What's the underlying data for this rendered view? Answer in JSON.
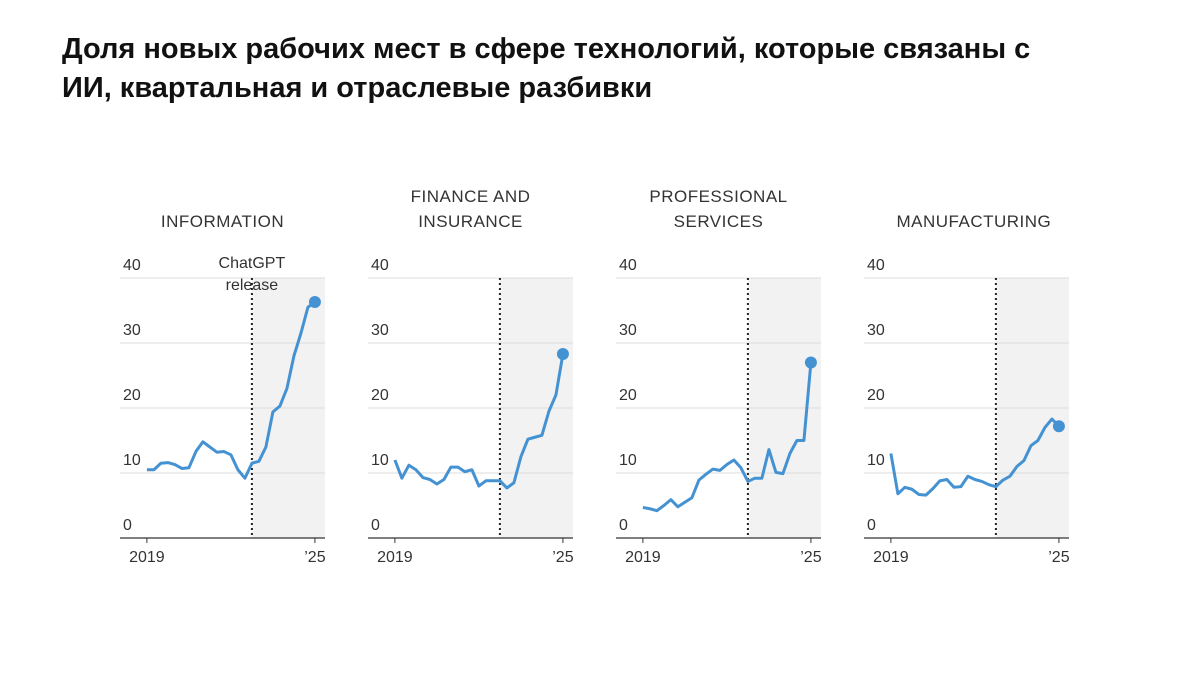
{
  "title": "Доля новых рабочих мест в сфере технологий, которые связаны с ИИ, квартальная и отраслевые разбивки",
  "chart_data": [
    {
      "type": "line",
      "title": "INFORMATION",
      "annotation": {
        "text": "ChatGPT release",
        "x": 2022.75
      },
      "release_x": 2022.75,
      "x": [
        2019,
        2019.25,
        2019.5,
        2019.75,
        2020,
        2020.25,
        2020.5,
        2020.75,
        2021,
        2021.25,
        2021.5,
        2021.75,
        2022,
        2022.25,
        2022.5,
        2022.75,
        2023,
        2023.25,
        2023.5,
        2023.75,
        2024,
        2024.25,
        2024.5,
        2024.75,
        2025
      ],
      "series": [
        {
          "color": "#4592d3",
          "values": [
            10.5,
            10.5,
            11.5,
            11.6,
            11.3,
            10.7,
            10.8,
            13.3,
            14.8,
            14,
            13.2,
            13.3,
            12.8,
            10.5,
            9.2,
            11.5,
            11.8,
            14,
            19.4,
            20.3,
            23,
            28,
            31.5,
            35.5,
            36.3
          ]
        }
      ],
      "xlim": [
        2018.04,
        2025.36
      ],
      "xticks": [
        2019,
        {
          "value": 2025,
          "label": "’25"
        }
      ],
      "ylim": [
        0,
        40
      ],
      "yticks": [
        0,
        10,
        20,
        30,
        40
      ],
      "grid": true
    },
    {
      "type": "line",
      "title": "FINANCE AND INSURANCE",
      "release_x": 2022.75,
      "x": [
        2019,
        2019.25,
        2019.5,
        2019.75,
        2020,
        2020.25,
        2020.5,
        2020.75,
        2021,
        2021.25,
        2021.5,
        2021.75,
        2022,
        2022.25,
        2022.5,
        2022.75,
        2023,
        2023.25,
        2023.5,
        2023.75,
        2024,
        2024.25,
        2024.5,
        2024.75,
        2025
      ],
      "series": [
        {
          "color": "#4592d3",
          "values": [
            12,
            9.2,
            11.2,
            10.5,
            9.3,
            9,
            8.3,
            9,
            10.9,
            10.9,
            10.2,
            10.5,
            8,
            8.8,
            8.8,
            8.8,
            7.7,
            8.5,
            12.5,
            15.2,
            15.5,
            15.8,
            19.5,
            22,
            28.3
          ]
        }
      ],
      "xlim": [
        2018.04,
        2025.36
      ],
      "xticks": [
        2019,
        {
          "value": 2025,
          "label": "’25"
        }
      ],
      "ylim": [
        0,
        40
      ],
      "yticks": [
        0,
        10,
        20,
        30,
        40
      ],
      "grid": true
    },
    {
      "type": "line",
      "title": "PROFESSIONAL SERVICES",
      "release_x": 2022.75,
      "x": [
        2019,
        2019.25,
        2019.5,
        2019.75,
        2020,
        2020.25,
        2020.5,
        2020.75,
        2021,
        2021.25,
        2021.5,
        2021.75,
        2022,
        2022.25,
        2022.5,
        2022.75,
        2023,
        2023.25,
        2023.5,
        2023.75,
        2024,
        2024.25,
        2024.5,
        2024.75,
        2025
      ],
      "series": [
        {
          "color": "#4592d3",
          "values": [
            4.7,
            4.5,
            4.2,
            5,
            5.9,
            4.8,
            5.5,
            6.2,
            8.9,
            9.8,
            10.6,
            10.4,
            11.3,
            12,
            10.8,
            8.7,
            9.2,
            9.2,
            13.6,
            10.1,
            9.9,
            13,
            15,
            15,
            27
          ]
        }
      ],
      "xlim": [
        2018.04,
        2025.36
      ],
      "xticks": [
        2019,
        {
          "value": 2025,
          "label": "’25"
        }
      ],
      "ylim": [
        0,
        40
      ],
      "yticks": [
        0,
        10,
        20,
        30,
        40
      ],
      "grid": true
    },
    {
      "type": "line",
      "title": "MANUFACTURING",
      "release_x": 2022.75,
      "x": [
        2019,
        2019.25,
        2019.5,
        2019.75,
        2020,
        2020.25,
        2020.5,
        2020.75,
        2021,
        2021.25,
        2021.5,
        2021.75,
        2022,
        2022.25,
        2022.5,
        2022.75,
        2023,
        2023.25,
        2023.5,
        2023.75,
        2024,
        2024.25,
        2024.5,
        2024.75,
        2025
      ],
      "series": [
        {
          "color": "#4592d3",
          "values": [
            13,
            6.8,
            7.8,
            7.5,
            6.7,
            6.6,
            7.6,
            8.8,
            9,
            7.8,
            7.9,
            9.5,
            9,
            8.7,
            8.2,
            7.9,
            8.9,
            9.5,
            11,
            11.9,
            14.2,
            15,
            17,
            18.3,
            17.2
          ]
        }
      ],
      "xlim": [
        2018.04,
        2025.36
      ],
      "xticks": [
        2019,
        {
          "value": 2025,
          "label": "’25"
        }
      ],
      "ylim": [
        0,
        40
      ],
      "yticks": [
        0,
        10,
        20,
        30,
        40
      ],
      "grid": true
    }
  ]
}
